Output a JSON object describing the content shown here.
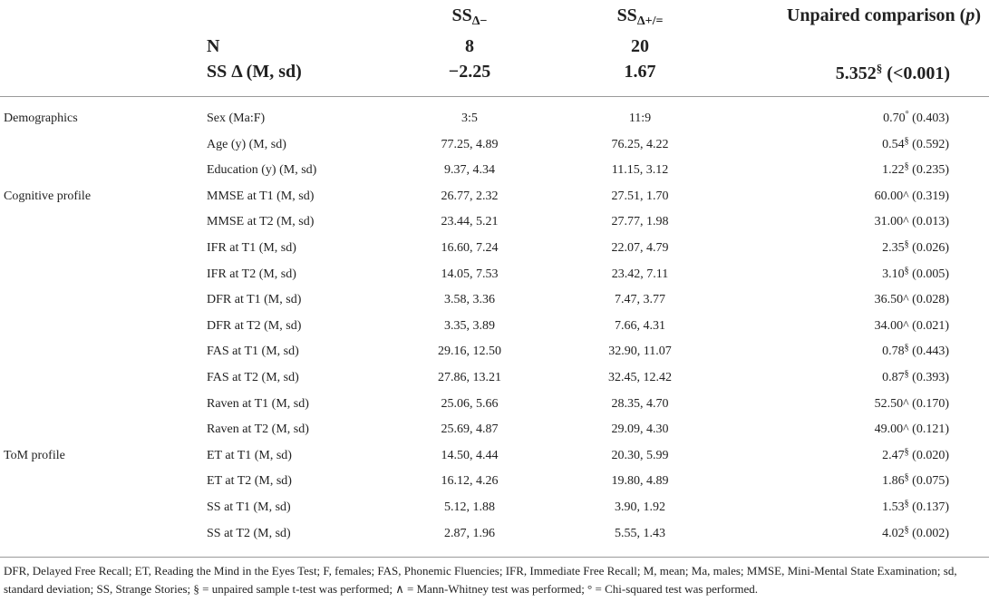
{
  "header": {
    "col_a_main": "SS",
    "col_a_sub": "Δ−",
    "col_b_main": "SS",
    "col_b_sub": "Δ+/=",
    "col_p_label": "Unpaired comparison (",
    "col_p_italic": "p",
    "col_p_close": ")",
    "n_label": "N",
    "n_a": "8",
    "n_b": "20",
    "ss_label": "SS Δ (M, sd)",
    "ss_a": "−2.25",
    "ss_b": "1.67",
    "ss_p_value": "5.352",
    "ss_p_sup": "§",
    "ss_p_paren": " (<0.001)"
  },
  "rows": [
    {
      "cat": "Demographics",
      "var": "Sex (Ma:F)",
      "a": "3:5",
      "b": "11:9",
      "p": "0.70",
      "sup": "°",
      "pv": " (0.403)"
    },
    {
      "cat": "",
      "var": "Age (y) (M, sd)",
      "a": "77.25, 4.89",
      "b": "76.25, 4.22",
      "p": "0.54",
      "sup": "§",
      "pv": " (0.592)"
    },
    {
      "cat": "",
      "var": "Education (y) (M, sd)",
      "a": "9.37, 4.34",
      "b": "11.15, 3.12",
      "p": "1.22",
      "sup": "§",
      "pv": " (0.235)"
    },
    {
      "cat": "Cognitive profile",
      "var": "MMSE at T1 (M, sd)",
      "a": "26.77, 2.32",
      "b": "27.51, 1.70",
      "p": "60.00^",
      "sup": "",
      "pv": " (0.319)"
    },
    {
      "cat": "",
      "var": "MMSE at T2 (M, sd)",
      "a": "23.44, 5.21",
      "b": "27.77, 1.98",
      "p": "31.00^",
      "sup": "",
      "pv": " (0.013)"
    },
    {
      "cat": "",
      "var": "IFR at T1 (M, sd)",
      "a": "16.60, 7.24",
      "b": "22.07, 4.79",
      "p": "2.35",
      "sup": "§",
      "pv": " (0.026)"
    },
    {
      "cat": "",
      "var": "IFR at T2 (M, sd)",
      "a": "14.05, 7.53",
      "b": "23.42, 7.11",
      "p": "3.10",
      "sup": "§",
      "pv": " (0.005)"
    },
    {
      "cat": "",
      "var": "DFR at T1 (M, sd)",
      "a": "3.58, 3.36",
      "b": "7.47, 3.77",
      "p": "36.50^",
      "sup": "",
      "pv": " (0.028)"
    },
    {
      "cat": "",
      "var": "DFR at T2 (M, sd)",
      "a": "3.35, 3.89",
      "b": "7.66, 4.31",
      "p": "34.00^",
      "sup": "",
      "pv": " (0.021)"
    },
    {
      "cat": "",
      "var": "FAS at T1 (M, sd)",
      "a": "29.16, 12.50",
      "b": "32.90, 11.07",
      "p": "0.78",
      "sup": "§",
      "pv": " (0.443)"
    },
    {
      "cat": "",
      "var": "FAS at T2 (M, sd)",
      "a": "27.86, 13.21",
      "b": "32.45, 12.42",
      "p": "0.87",
      "sup": "§",
      "pv": " (0.393)"
    },
    {
      "cat": "",
      "var": "Raven at T1 (M, sd)",
      "a": "25.06, 5.66",
      "b": "28.35, 4.70",
      "p": "52.50^",
      "sup": "",
      "pv": " (0.170)"
    },
    {
      "cat": "",
      "var": "Raven at T2 (M, sd)",
      "a": "25.69, 4.87",
      "b": "29.09, 4.30",
      "p": "49.00^",
      "sup": "",
      "pv": " (0.121)"
    },
    {
      "cat": "ToM profile",
      "var": "ET at T1 (M, sd)",
      "a": "14.50, 4.44",
      "b": "20.30, 5.99",
      "p": "2.47",
      "sup": "§",
      "pv": " (0.020)"
    },
    {
      "cat": "",
      "var": "ET at T2 (M, sd)",
      "a": "16.12, 4.26",
      "b": "19.80, 4.89",
      "p": "1.86",
      "sup": "§",
      "pv": " (0.075)"
    },
    {
      "cat": "",
      "var": "SS at T1 (M, sd)",
      "a": "5.12, 1.88",
      "b": "3.90, 1.92",
      "p": "1.53",
      "sup": "§",
      "pv": " (0.137)"
    },
    {
      "cat": "",
      "var": "SS at T2 (M, sd)",
      "a": "2.87, 1.96",
      "b": "5.55, 1.43",
      "p": "4.02",
      "sup": "§",
      "pv": " (0.002)"
    }
  ],
  "footnote": "DFR, Delayed Free Recall; ET, Reading the Mind in the Eyes Test; F, females; FAS, Phonemic Fluencies; IFR, Immediate Free Recall; M, mean; Ma, males; MMSE, Mini-Mental State Examination; sd, standard deviation; SS, Strange Stories; § = unpaired sample t-test was performed; ∧ = Mann-Whitney test was performed; ° = Chi-squared test was performed."
}
